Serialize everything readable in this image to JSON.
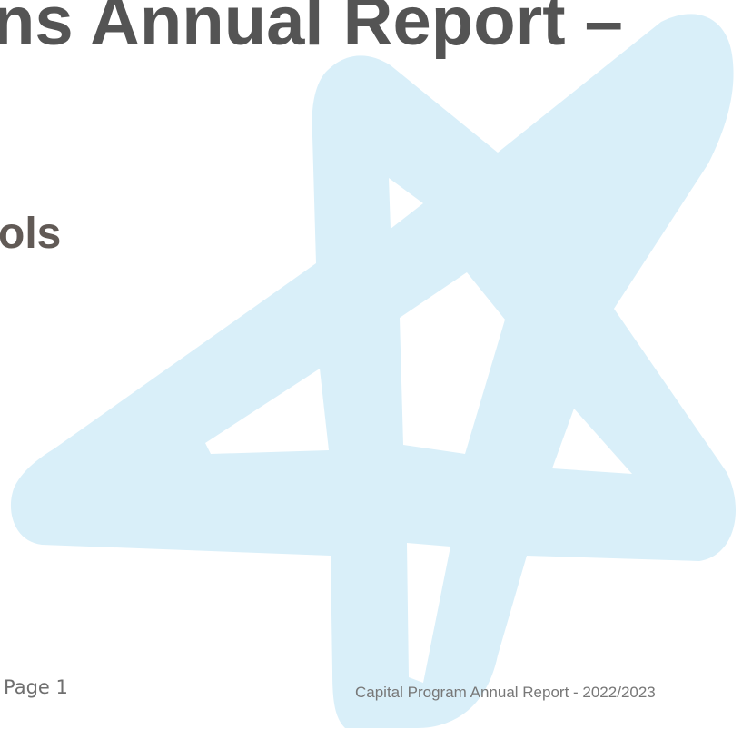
{
  "document": {
    "title": "ns Annual Report –",
    "subtitle": "ols"
  },
  "watermark": {
    "icon": "star-logo-icon",
    "color": "#d9eff9"
  },
  "footer": {
    "page_number": "Page 1",
    "report_title": "Capital Program Annual Report - 2022/2023"
  }
}
